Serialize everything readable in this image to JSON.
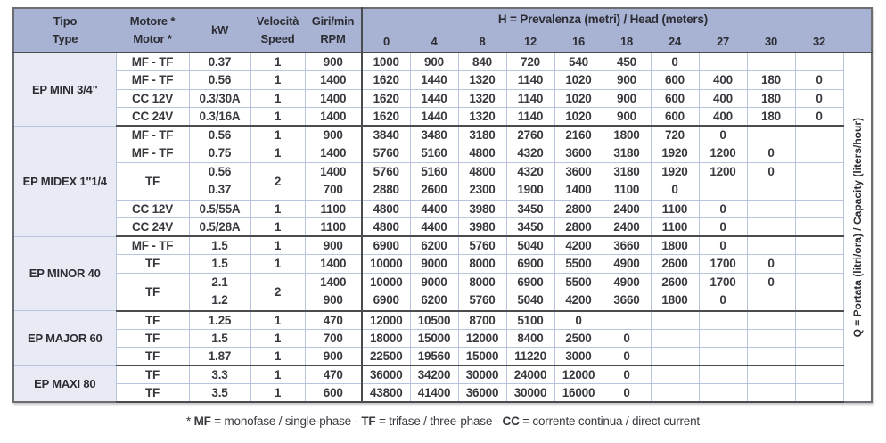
{
  "colors": {
    "header_bg": "#a8b2d2",
    "group_row_bg": "#e9ebf4",
    "grid_light": "#b9c5de",
    "grid_dark": "#4a4b4e",
    "text": "#38383e"
  },
  "table": {
    "left_headers": [
      {
        "id": "tipo",
        "label": "Tipo\nType"
      },
      {
        "id": "motor",
        "label": "Motore *\nMotor *"
      },
      {
        "id": "kw",
        "label": "kW"
      },
      {
        "id": "speed",
        "label": "Velocità\nSpeed"
      },
      {
        "id": "rpm",
        "label": "Giri/min\nRPM"
      }
    ],
    "h_title_segments": [
      {
        "t": "H",
        "b": true
      },
      {
        "t": " = Prevalenza (metri) / Head (meters)",
        "b": false
      }
    ],
    "head_values": [
      "0",
      "4",
      "8",
      "12",
      "16",
      "18",
      "24",
      "27",
      "30",
      "32"
    ],
    "q_label_segments": [
      {
        "t": "Q",
        "b": true
      },
      {
        "t": " = Portata (litri/ora) / Capacity (liters/hour)",
        "b": false
      }
    ],
    "groups": [
      {
        "name": "EP MINI 3/4\"",
        "rows": [
          {
            "motor": "MF - TF",
            "kw": "0.37",
            "speed": "1",
            "rpm": "900",
            "values": [
              "1000",
              "900",
              "840",
              "720",
              "540",
              "450",
              "0",
              "",
              "",
              ""
            ]
          },
          {
            "motor": "MF - TF",
            "kw": "0.56",
            "speed": "1",
            "rpm": "1400",
            "values": [
              "1620",
              "1440",
              "1320",
              "1140",
              "1020",
              "900",
              "600",
              "400",
              "180",
              "0"
            ]
          },
          {
            "motor": "CC 12V",
            "kw": "0.3/30A",
            "speed": "1",
            "rpm": "1400",
            "values": [
              "1620",
              "1440",
              "1320",
              "1140",
              "1020",
              "900",
              "600",
              "400",
              "180",
              "0"
            ]
          },
          {
            "motor": "CC 24V",
            "kw": "0.3/16A",
            "speed": "1",
            "rpm": "1400",
            "values": [
              "1620",
              "1440",
              "1320",
              "1140",
              "1020",
              "900",
              "600",
              "400",
              "180",
              "0"
            ]
          }
        ]
      },
      {
        "name": "EP MIDEX 1\"1/4",
        "rows": [
          {
            "motor": "MF - TF",
            "kw": "0.56",
            "speed": "1",
            "rpm": "900",
            "values": [
              "3840",
              "3480",
              "3180",
              "2760",
              "2160",
              "1800",
              "720",
              "0",
              "",
              ""
            ]
          },
          {
            "motor": "MF - TF",
            "kw": "0.75",
            "speed": "1",
            "rpm": "1400",
            "values": [
              "5760",
              "5160",
              "4800",
              "4320",
              "3600",
              "3180",
              "1920",
              "1200",
              "0",
              ""
            ]
          },
          {
            "motor": "TF",
            "kw": "0.56\n0.37",
            "speed": "2",
            "rpm": "1400\n700",
            "values": [
              "5760\n2880",
              "5160\n2600",
              "4800\n2300",
              "4320\n1900",
              "3600\n1400",
              "3180\n1100",
              "1920\n0",
              "1200\n",
              "0\n",
              "\n"
            ]
          },
          {
            "motor": "CC 12V",
            "kw": "0.5/55A",
            "speed": "1",
            "rpm": "1100",
            "values": [
              "4800",
              "4400",
              "3980",
              "3450",
              "2800",
              "2400",
              "1100",
              "0",
              "",
              ""
            ]
          },
          {
            "motor": "CC 24V",
            "kw": "0.5/28A",
            "speed": "1",
            "rpm": "1100",
            "values": [
              "4800",
              "4400",
              "3980",
              "3450",
              "2800",
              "2400",
              "1100",
              "0",
              "",
              ""
            ]
          }
        ]
      },
      {
        "name": "EP MINOR 40",
        "rows": [
          {
            "motor": "MF - TF",
            "kw": "1.5",
            "speed": "1",
            "rpm": "900",
            "values": [
              "6900",
              "6200",
              "5760",
              "5040",
              "4200",
              "3660",
              "1800",
              "0",
              "",
              ""
            ]
          },
          {
            "motor": "TF",
            "kw": "1.5",
            "speed": "1",
            "rpm": "1400",
            "values": [
              "10000",
              "9000",
              "8000",
              "6900",
              "5500",
              "4900",
              "2600",
              "1700",
              "0",
              ""
            ]
          },
          {
            "motor": "TF",
            "kw": "2.1\n1.2",
            "speed": "2",
            "rpm": "1400\n900",
            "values": [
              "10000\n6900",
              "9000\n6200",
              "8000\n5760",
              "6900\n5040",
              "5500\n4200",
              "4900\n3660",
              "2600\n1800",
              "1700\n0",
              "0\n",
              "\n"
            ]
          }
        ]
      },
      {
        "name": "EP MAJOR 60",
        "rows": [
          {
            "motor": "TF",
            "kw": "1.25",
            "speed": "1",
            "rpm": "470",
            "values": [
              "12000",
              "10500",
              "8700",
              "5100",
              "0",
              "",
              "",
              "",
              "",
              ""
            ]
          },
          {
            "motor": "TF",
            "kw": "1.5",
            "speed": "1",
            "rpm": "700",
            "values": [
              "18000",
              "15000",
              "12000",
              "8400",
              "2500",
              "0",
              "",
              "",
              "",
              ""
            ]
          },
          {
            "motor": "TF",
            "kw": "1.87",
            "speed": "1",
            "rpm": "900",
            "values": [
              "22500",
              "19560",
              "15000",
              "11220",
              "3000",
              "0",
              "",
              "",
              "",
              ""
            ]
          }
        ]
      },
      {
        "name": "EP MAXI 80",
        "rows": [
          {
            "motor": "TF",
            "kw": "3.3",
            "speed": "1",
            "rpm": "470",
            "values": [
              "36000",
              "34200",
              "30000",
              "24000",
              "12000",
              "0",
              "",
              "",
              "",
              ""
            ]
          },
          {
            "motor": "TF",
            "kw": "3.5",
            "speed": "1",
            "rpm": "600",
            "values": [
              "43800",
              "41400",
              "36000",
              "30000",
              "16000",
              "0",
              "",
              "",
              "",
              ""
            ]
          }
        ]
      }
    ]
  },
  "footnote_segments": [
    {
      "t": "* ",
      "b": false
    },
    {
      "t": "MF",
      "b": true
    },
    {
      "t": " = monofase / single-phase - ",
      "b": false
    },
    {
      "t": "TF",
      "b": true
    },
    {
      "t": " = trifase / three-phase - ",
      "b": false
    },
    {
      "t": "CC",
      "b": true
    },
    {
      "t": " = corrente continua / direct current",
      "b": false
    }
  ]
}
